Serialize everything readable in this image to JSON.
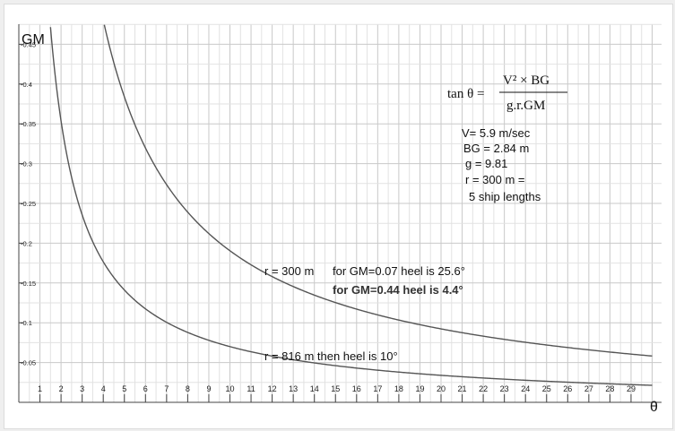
{
  "chart_data": {
    "type": "line",
    "ylabel": "GM",
    "xlabel": "θ",
    "xlim": [
      0,
      30
    ],
    "ylim": [
      0,
      0.5
    ],
    "x_ticks": [
      1,
      2,
      3,
      4,
      5,
      6,
      7,
      8,
      9,
      10,
      11,
      12,
      13,
      14,
      15,
      16,
      17,
      18,
      19,
      20,
      21,
      22,
      23,
      24,
      25,
      26,
      27,
      28,
      29
    ],
    "y_ticks": [
      0.05,
      0.1,
      0.15,
      0.2,
      0.25,
      0.3,
      0.35,
      0.4,
      0.45
    ],
    "y_tick_labels": [
      "-0.05",
      "-0.1",
      "-0.15",
      "-0.2",
      "-0.25",
      "-0.3",
      "-0.35",
      "-0.4",
      "-0.45"
    ],
    "grid": true,
    "series": [
      {
        "name": "r = 300 m",
        "k": 1.0,
        "color": "#555555"
      },
      {
        "name": "r = 816 m",
        "k": 0.3676,
        "color": "#555555"
      }
    ],
    "formula": {
      "lhs": "tan θ =",
      "numerator": "V² × BG",
      "denominator": "g.r.GM"
    },
    "parameters": [
      "V= 5.9 m/sec",
      "BG = 2.84 m",
      "g = 9.81",
      "r = 300 m =",
      "5 ship lengths"
    ],
    "annotations": {
      "r300": "r = 300 m",
      "gm007": "for GM=0.07 heel is 25.6°",
      "gm044": "for GM=0.44 heel is 4.4°",
      "r816": "r = 816 m  then heel is 10°"
    }
  }
}
